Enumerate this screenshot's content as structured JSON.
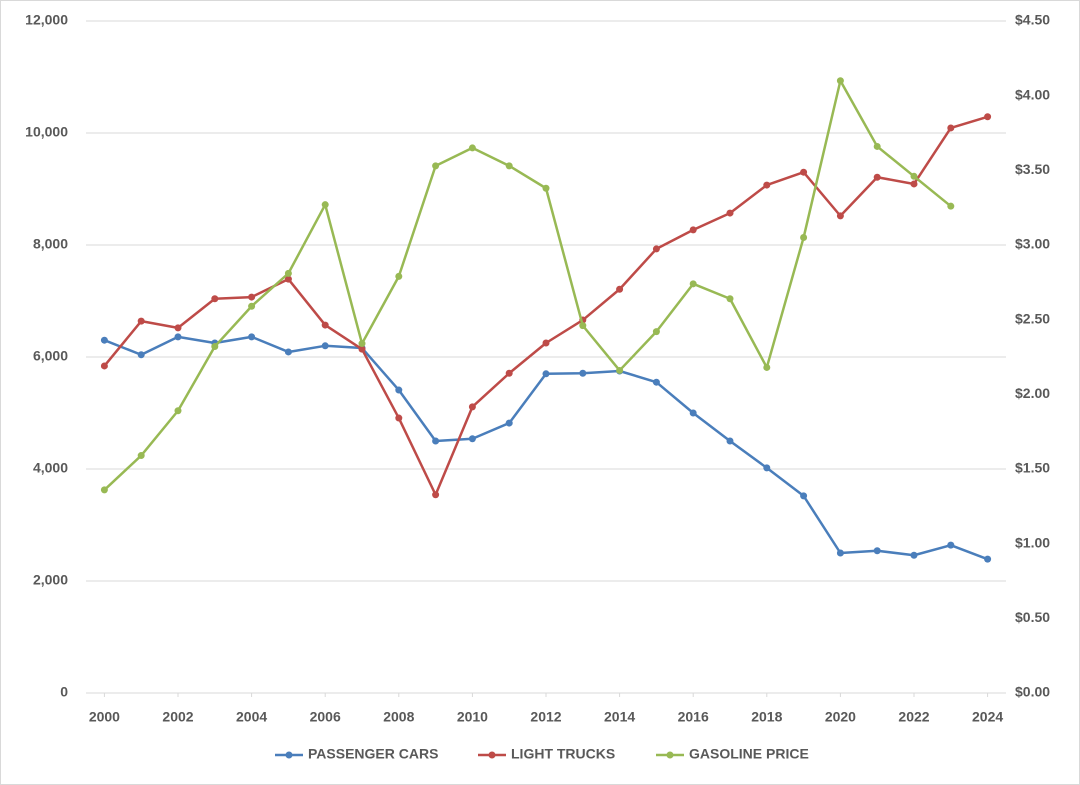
{
  "chart_data": {
    "type": "line",
    "x": [
      2000,
      2001,
      2002,
      2003,
      2004,
      2005,
      2006,
      2007,
      2008,
      2009,
      2010,
      2011,
      2012,
      2013,
      2014,
      2015,
      2016,
      2017,
      2018,
      2019,
      2020,
      2021,
      2022,
      2023,
      2024
    ],
    "xlim": [
      1999.5,
      2024.5
    ],
    "xticks": [
      2000,
      2002,
      2004,
      2006,
      2008,
      2010,
      2012,
      2014,
      2016,
      2018,
      2020,
      2022,
      2024
    ],
    "ylim": [
      0,
      12000
    ],
    "yticks": [
      0,
      {
        "value": 2000,
        "label": "2,000"
      },
      {
        "value": 4000,
        "label": "4,000"
      },
      {
        "value": 6000,
        "label": "6,000"
      },
      {
        "value": 8000,
        "label": "8,000"
      },
      {
        "value": 10000,
        "label": "10,000"
      },
      {
        "value": 12000,
        "label": "12,000"
      }
    ],
    "y2lim": [
      0,
      4.5
    ],
    "y2ticks": [
      {
        "value": 0,
        "label": "$0.00"
      },
      {
        "value": 0.5,
        "label": "$0.50"
      },
      {
        "value": 1,
        "label": "$1.00"
      },
      {
        "value": 1.5,
        "label": "$1.50"
      },
      {
        "value": 2,
        "label": "$2.00"
      },
      {
        "value": 2.5,
        "label": "$2.50"
      },
      {
        "value": 3,
        "label": "$3.00"
      },
      {
        "value": 3.5,
        "label": "$3.50"
      },
      {
        "value": 4,
        "label": "$4.00"
      },
      {
        "value": 4.5,
        "label": "$4.50"
      }
    ],
    "grid": true,
    "legend": "bottom",
    "series": [
      {
        "name": "PASSENGER CARS",
        "color": "#4a7ebb",
        "values": [
          6300,
          6040,
          6360,
          6250,
          6360,
          6090,
          6200,
          6160,
          5410,
          4500,
          4540,
          4820,
          5700,
          5710,
          5750,
          5550,
          5000,
          4500,
          4020,
          3520,
          2500,
          2540,
          2460,
          2640,
          2390
        ]
      },
      {
        "name": "LIGHT TRUCKS",
        "color": "#be4b48",
        "values": [
          5840,
          6640,
          6520,
          7040,
          7070,
          7390,
          6570,
          6140,
          4910,
          3540,
          5110,
          5710,
          6250,
          6660,
          7210,
          7930,
          8270,
          8570,
          9070,
          9300,
          8520,
          9210,
          9090,
          10090,
          10290
        ]
      },
      {
        "name": "GASOLINE PRICE",
        "color": "#98b954",
        "axis": "y2",
        "values": [
          1.36,
          1.59,
          1.89,
          2.32,
          2.59,
          2.81,
          3.27,
          2.34,
          2.79,
          3.53,
          3.65,
          3.53,
          3.38,
          2.46,
          2.16,
          2.42,
          2.74,
          2.64,
          2.18,
          3.05,
          4.1,
          3.66,
          3.46,
          3.26,
          null
        ]
      }
    ]
  }
}
